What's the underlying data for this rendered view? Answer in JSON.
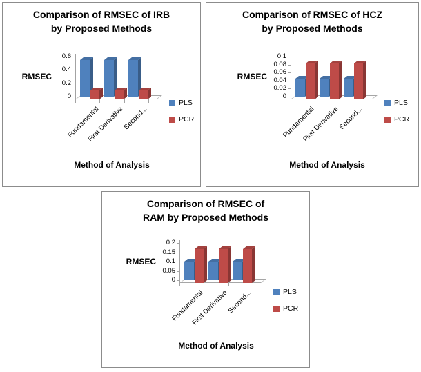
{
  "chart_data": [
    {
      "id": "IRB",
      "type": "bar",
      "style": "3d-clustered-column",
      "title": "Comparison of RMSEC of IRB by Proposed Methods",
      "title_lines": [
        "Comparison of RMSEC of IRB",
        "by Proposed Methods"
      ],
      "xlabel": "Method of Analysis",
      "ylabel": "RMSEC",
      "categories": [
        "Fundamental",
        "First Derivative",
        "Second..."
      ],
      "series": [
        {
          "name": "PLS",
          "color": "#4F81BD",
          "values": [
            0.55,
            0.55,
            0.55
          ]
        },
        {
          "name": "PCR",
          "color": "#BE4B48",
          "values": [
            0.13,
            0.13,
            0.13
          ]
        }
      ],
      "y_ticks": [
        0,
        0.2,
        0.4,
        0.6
      ],
      "ylim": [
        0,
        0.6
      ],
      "legend_position": "right",
      "grid": false
    },
    {
      "id": "HCZ",
      "type": "bar",
      "style": "3d-clustered-column",
      "title": "Comparison of RMSEC of HCZ by Proposed Methods",
      "title_lines": [
        "Comparison of RMSEC of HCZ",
        "by Proposed Methods"
      ],
      "xlabel": "Method of Analysis",
      "ylabel": "RMSEC",
      "categories": [
        "Fundamental",
        "First Derivative",
        "Second..."
      ],
      "series": [
        {
          "name": "PLS",
          "color": "#4F81BD",
          "values": [
            0.045,
            0.045,
            0.045
          ]
        },
        {
          "name": "PCR",
          "color": "#BE4B48",
          "values": [
            0.09,
            0.09,
            0.09
          ]
        }
      ],
      "y_ticks": [
        0,
        0.02,
        0.04,
        0.06,
        0.08,
        0.1
      ],
      "ylim": [
        0,
        0.1
      ],
      "legend_position": "right",
      "grid": false
    },
    {
      "id": "RAM",
      "type": "bar",
      "style": "3d-clustered-column",
      "title": "Comparison of RMSEC of RAM by Proposed Methods",
      "title_lines": [
        "Comparison of RMSEC of",
        "RAM by Proposed Methods"
      ],
      "xlabel": "Method of Analysis",
      "ylabel": "RMSEC",
      "categories": [
        "Fundamental",
        "First Derivative",
        "Second..."
      ],
      "series": [
        {
          "name": "PLS",
          "color": "#4F81BD",
          "values": [
            0.1,
            0.1,
            0.1
          ]
        },
        {
          "name": "PCR",
          "color": "#BE4B48",
          "values": [
            0.18,
            0.18,
            0.18
          ]
        }
      ],
      "y_ticks": [
        0,
        0.05,
        0.1,
        0.15,
        0.2
      ],
      "ylim": [
        0,
        0.2
      ],
      "legend_position": "right",
      "grid": false
    }
  ]
}
